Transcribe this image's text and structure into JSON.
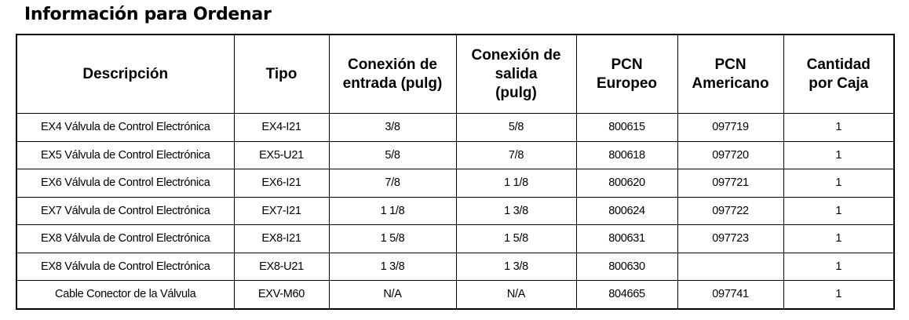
{
  "title": "Información para Ordenar",
  "table": {
    "headers": [
      [
        "Descripción"
      ],
      [
        "Tipo"
      ],
      [
        "Conexión de",
        "entrada (pulg)"
      ],
      [
        "Conexión de",
        "salida",
        "(pulg)"
      ],
      [
        "PCN",
        "Europeo"
      ],
      [
        "PCN",
        "Americano"
      ],
      [
        "Cantidad",
        "por Caja"
      ]
    ],
    "rows": [
      [
        "EX4 Válvula de Control Electrónica",
        "EX4-I21",
        "3/8",
        "5/8",
        "800615",
        "097719",
        "1"
      ],
      [
        "EX5 Válvula de Control Electrónica",
        "EX5-U21",
        "5/8",
        "7/8",
        "800618",
        "097720",
        "1"
      ],
      [
        "EX6 Válvula de Control Electrónica",
        "EX6-I21",
        "7/8",
        "1 1/8",
        "800620",
        "097721",
        "1"
      ],
      [
        "EX7 Válvula de Control Electrónica",
        "EX7-I21",
        "1 1/8",
        "1 3/8",
        "800624",
        "097722",
        "1"
      ],
      [
        "EX8 Válvula de Control Electrónica",
        "EX8-I21",
        "1 5/8",
        "1 5/8",
        "800631",
        "097723",
        "1"
      ],
      [
        "EX8 Válvula de Control Electrónica",
        "EX8-U21",
        "1 3/8",
        "1 3/8",
        "800630",
        null,
        "1"
      ],
      [
        "Cable Conector de la Válvula",
        "EXV-M60",
        "N/A",
        "N/A",
        "804665",
        "097741",
        "1"
      ]
    ]
  }
}
